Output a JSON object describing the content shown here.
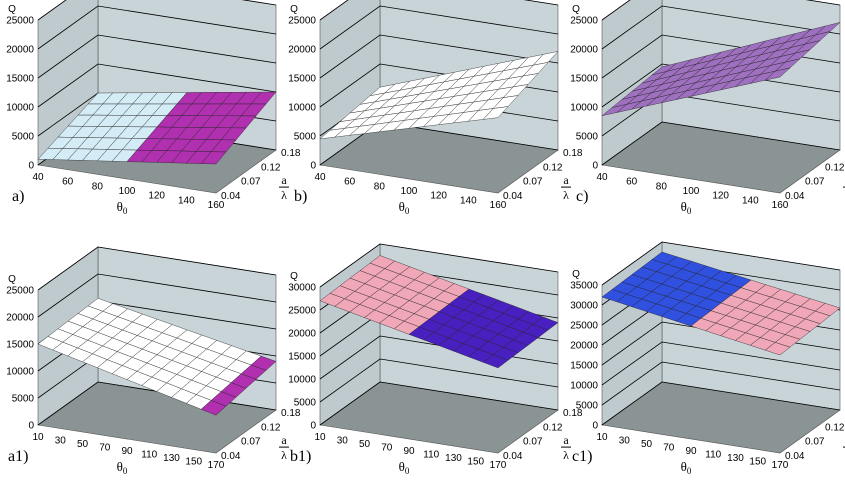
{
  "figure": {
    "theta_symbol": "θ",
    "theta_subscript": "0",
    "ratio_top": "a",
    "ratio_bottom": "λ"
  },
  "colors": {
    "wall": "#c8d4d8",
    "floor": "#8b9494",
    "grid": "#000000"
  },
  "chart_data": [
    {
      "id": "a",
      "type": "surface",
      "panel_label": "a)",
      "title": "",
      "zlabel": "Q",
      "xlabel": "θ0",
      "ylabel": "a/λ",
      "zticks": [
        "0",
        "5000",
        "10000",
        "15000",
        "20000",
        "25000"
      ],
      "zlim": [
        0,
        25000
      ],
      "xticks": [
        "40",
        "60",
        "80",
        "100",
        "120",
        "140",
        "160"
      ],
      "xlim": [
        40,
        160
      ],
      "yticks": [
        "0.04",
        "0.07",
        "0.12",
        "0.18"
      ],
      "surface": {
        "corners": {
          "xmin_ymin": 1000,
          "xmax_ymin": 5000,
          "xmin_ymax": 5000,
          "xmax_ymax": 10000
        },
        "split_at_x": 100,
        "colors": [
          "#d4ecf6",
          "#b030b0"
        ]
      }
    },
    {
      "id": "b",
      "type": "surface",
      "panel_label": "b)",
      "title": "",
      "zlabel": "Q",
      "xlabel": "θ0",
      "ylabel": "a/λ",
      "zticks": [
        "0",
        "5000",
        "10000",
        "15000",
        "20000",
        "25000"
      ],
      "zlim": [
        0,
        25000
      ],
      "xticks": [
        "40",
        "60",
        "80",
        "100",
        "120",
        "140",
        "160"
      ],
      "xlim": [
        40,
        160
      ],
      "yticks": [
        "0.04",
        "0.07",
        "0.12",
        "0.18"
      ],
      "surface": {
        "corners": {
          "xmin_ymin": 4500,
          "xmax_ymin": 13000,
          "xmin_ymax": 6000,
          "xmax_ymax": 17000
        },
        "split_at_x": null,
        "colors": [
          "#ffffff"
        ]
      }
    },
    {
      "id": "c",
      "type": "surface",
      "panel_label": "c)",
      "title": "",
      "zlabel": "Q",
      "xlabel": "θ0",
      "ylabel": "a/λ",
      "zticks": [
        "0",
        "5000",
        "10000",
        "15000",
        "20000",
        "25000"
      ],
      "zlim": [
        0,
        25000
      ],
      "xticks": [
        "40",
        "60",
        "80",
        "100",
        "120",
        "140",
        "160"
      ],
      "xlim": [
        40,
        160
      ],
      "yticks": [
        "0.04",
        "0.07",
        "0.12",
        "0.18"
      ],
      "surface": {
        "corners": {
          "xmin_ymin": 8500,
          "xmax_ymin": 20000,
          "xmin_ymax": 9500,
          "xmax_ymax": 22000
        },
        "split_at_x": null,
        "colors": [
          "#a070c0"
        ]
      }
    },
    {
      "id": "a1",
      "type": "surface",
      "panel_label": "a1)",
      "title": "",
      "zlabel": "Q",
      "xlabel": "θ0",
      "ylabel": "a/λ",
      "zticks": [
        "0",
        "5000",
        "10000",
        "15000",
        "20000",
        "25000"
      ],
      "zlim": [
        0,
        25000
      ],
      "xticks": [
        "10",
        "30",
        "50",
        "70",
        "90",
        "110",
        "130",
        "150",
        "170"
      ],
      "xlim": [
        10,
        170
      ],
      "yticks": [
        "0.04",
        "0.07",
        "0.12",
        "0.18"
      ],
      "surface": {
        "corners": {
          "xmin_ymin": 15000,
          "xmax_ymin": 7000,
          "xmin_ymax": 15500,
          "xmax_ymax": 9000
        },
        "split_at_x": 155,
        "colors": [
          "#ffffff",
          "#b030b0"
        ]
      }
    },
    {
      "id": "b1",
      "type": "surface",
      "panel_label": "b1)",
      "title": "",
      "zlabel": "Q",
      "xlabel": "θ0",
      "ylabel": "a/λ",
      "zticks": [
        "0",
        "5000",
        "10000",
        "15000",
        "20000",
        "25000",
        "30000"
      ],
      "zlim": [
        0,
        30000
      ],
      "xticks": [
        "10",
        "30",
        "50",
        "70",
        "90",
        "110",
        "130",
        "150",
        "170"
      ],
      "xlim": [
        10,
        170
      ],
      "yticks": [
        "0.04",
        "0.07",
        "0.12",
        "0.18"
      ],
      "surface": {
        "corners": {
          "xmin_ymin": 27000,
          "xmax_ymin": 18500,
          "xmin_ymax": 27500,
          "xmax_ymax": 19000
        },
        "split_at_x": 90,
        "colors": [
          "#f0a8b8",
          "#4820c0"
        ]
      }
    },
    {
      "id": "c1",
      "type": "surface",
      "panel_label": "c1)",
      "title": "",
      "zlabel": "Q",
      "xlabel": "θ0",
      "ylabel": "a/λ",
      "zticks": [
        "0",
        "5000",
        "10000",
        "15000",
        "20000",
        "25000",
        "30000",
        "35000"
      ],
      "zlim": [
        0,
        35000
      ],
      "xticks": [
        "10",
        "30",
        "50",
        "70",
        "90",
        "110",
        "130",
        "150",
        "170"
      ],
      "xlim": [
        10,
        170
      ],
      "yticks": [
        "0.04",
        "0.07",
        "0.12",
        "0.18"
      ],
      "surface": {
        "corners": {
          "xmin_ymin": 32000,
          "xmax_ymin": 24500,
          "xmin_ymax": 32500,
          "xmax_ymax": 25500
        },
        "split_at_x": 90,
        "colors": [
          "#3050e0",
          "#f0a8b8"
        ]
      }
    }
  ]
}
